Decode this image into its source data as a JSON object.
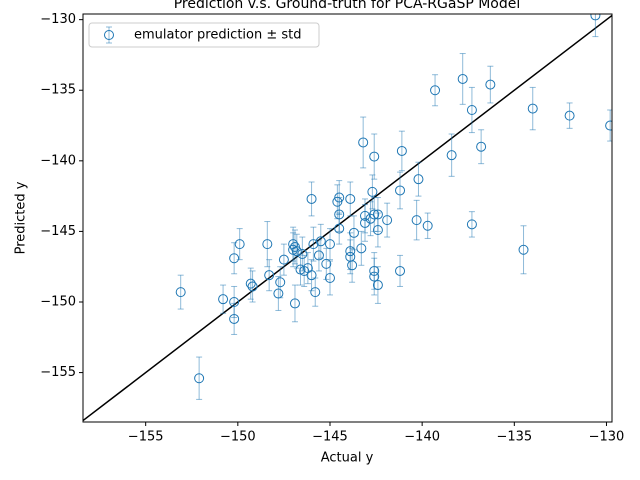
{
  "chart_data": {
    "type": "scatter",
    "title": "Prediction v.s. Ground-truth for PCA-RGaSP Model",
    "x_label": "Actual y",
    "y_label": "Predicted y",
    "xlim": [
      -158.4,
      -129.7
    ],
    "ylim": [
      -158.5,
      -129.6
    ],
    "xticks": [
      {
        "value": -155,
        "label": "−155"
      },
      {
        "value": -150,
        "label": "−150"
      },
      {
        "value": -145,
        "label": "−145"
      },
      {
        "value": -140,
        "label": "−140"
      },
      {
        "value": -135,
        "label": "−135"
      },
      {
        "value": -130,
        "label": "−130"
      }
    ],
    "yticks": [
      {
        "value": -155,
        "label": "−155"
      },
      {
        "value": -150,
        "label": "−150"
      },
      {
        "value": -145,
        "label": "−145"
      },
      {
        "value": -140,
        "label": "−140"
      },
      {
        "value": -135,
        "label": "−135"
      },
      {
        "value": -130,
        "label": "−130"
      }
    ],
    "legend": "upper left",
    "series": [
      {
        "name": "emulator prediction ± std",
        "color": "#1f77b4",
        "x": [
          -153.1,
          -152.1,
          -150.8,
          -150.2,
          -150.2,
          -150.2,
          -149.9,
          -149.3,
          -149.2,
          -148.4,
          -148.3,
          -147.8,
          -147.7,
          -147.5,
          -147.0,
          -146.9,
          -147.0,
          -146.8,
          -146.9,
          -146.6,
          -146.4,
          -146.5,
          -146.2,
          -146.0,
          -146.0,
          -145.9,
          -145.8,
          -145.6,
          -145.5,
          -145.2,
          -145.0,
          -145.0,
          -144.6,
          -144.5,
          -144.5,
          -144.5,
          -143.9,
          -143.9,
          -143.9,
          -143.8,
          -143.7,
          -143.3,
          -143.2,
          -143.1,
          -143.1,
          -142.8,
          -142.7,
          -142.6,
          -142.6,
          -142.6,
          -142.6,
          -142.4,
          -142.4,
          -142.4,
          -141.9,
          -141.2,
          -141.2,
          -141.1,
          -140.2,
          -140.3,
          -139.7,
          -139.3,
          -138.4,
          -137.8,
          -137.3,
          -137.3,
          -136.8,
          -136.3,
          -134.5,
          -134.0,
          -132.0,
          -130.6,
          -129.8
        ],
        "values": [
          -149.3,
          -155.4,
          -149.8,
          -151.2,
          -150.0,
          -146.9,
          -145.9,
          -148.7,
          -148.9,
          -145.9,
          -148.1,
          -149.4,
          -148.6,
          -147.0,
          -145.9,
          -146.1,
          -146.3,
          -146.4,
          -150.1,
          -147.7,
          -147.8,
          -146.6,
          -147.6,
          -148.1,
          -142.7,
          -145.9,
          -149.3,
          -146.7,
          -145.7,
          -147.3,
          -145.9,
          -148.3,
          -142.9,
          -142.6,
          -143.8,
          -144.8,
          -142.7,
          -146.4,
          -146.8,
          -147.4,
          -145.1,
          -146.2,
          -138.7,
          -143.9,
          -144.4,
          -144.1,
          -142.2,
          -139.7,
          -143.8,
          -147.8,
          -148.2,
          -148.8,
          -143.8,
          -144.9,
          -144.2,
          -142.1,
          -147.8,
          -139.3,
          -141.3,
          -144.2,
          -144.6,
          -135.0,
          -139.6,
          -134.2,
          -136.4,
          -144.5,
          -139.0,
          -134.6,
          -146.3,
          -136.3,
          -136.8,
          -129.7,
          -137.5
        ],
        "errors": [
          1.2,
          1.5,
          1.0,
          1.1,
          1.1,
          1.1,
          1.1,
          1.1,
          1.1,
          1.6,
          1.1,
          1.2,
          1.1,
          1.1,
          1.2,
          1.2,
          1.2,
          1.2,
          1.3,
          1.1,
          1.1,
          1.2,
          1.1,
          1.1,
          1.2,
          1.2,
          1.0,
          1.1,
          1.2,
          1.1,
          1.1,
          1.2,
          1.2,
          1.2,
          1.2,
          1.1,
          1.2,
          1.3,
          1.2,
          1.2,
          1.2,
          1.2,
          1.8,
          1.2,
          1.3,
          1.2,
          1.2,
          1.6,
          1.2,
          1.3,
          1.3,
          1.3,
          1.2,
          1.2,
          1.2,
          1.3,
          1.1,
          1.4,
          1.2,
          1.4,
          0.9,
          1.1,
          1.5,
          1.8,
          1.6,
          0.9,
          1.2,
          1.3,
          1.7,
          1.5,
          0.9,
          1.5,
          1.1
        ]
      }
    ]
  }
}
